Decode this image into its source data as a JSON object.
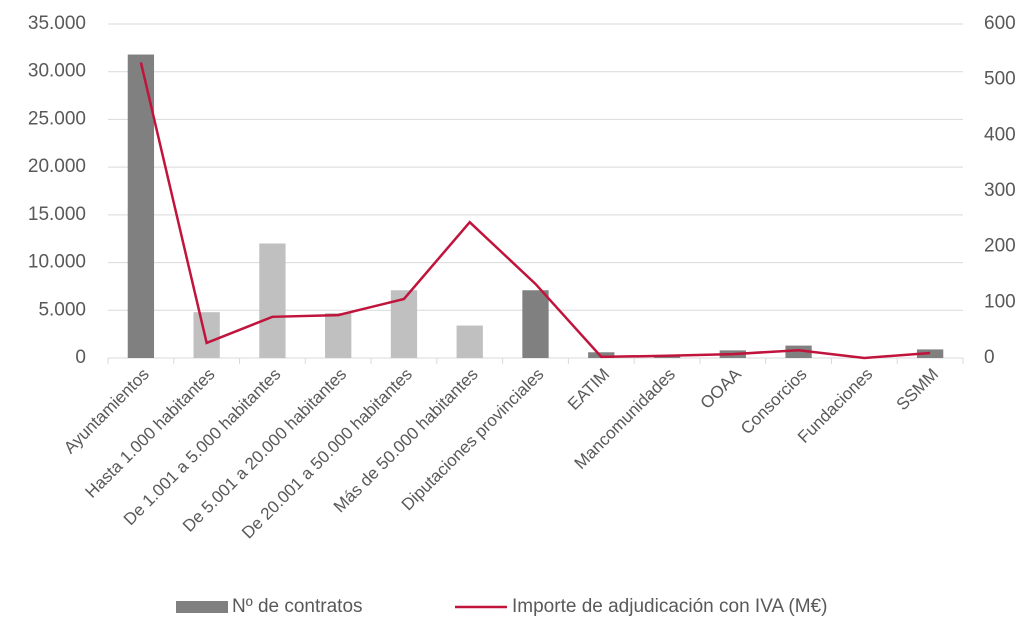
{
  "chart_data": {
    "type": "bar_line",
    "categories": [
      "Ayuntamientos",
      "Hasta 1.000 habitantes",
      "De 1.001 a 5.000 habitantes",
      "De 5.001 a 20.000 habitantes",
      "De 20.001 a 50.000 habitantes",
      "Más de 50.000 habitantes",
      "Diputaciones  provinciales",
      "EATIM",
      "Mancomunidades",
      "OOAA",
      "Consorcios",
      "Fundaciones",
      "SSMM"
    ],
    "series": [
      {
        "name": "Nº de contratos",
        "type": "bar",
        "color": "#808080",
        "colors": [
          "#808080",
          "#c0c0c0",
          "#c0c0c0",
          "#c0c0c0",
          "#c0c0c0",
          "#c0c0c0",
          "#808080",
          "#808080",
          "#808080",
          "#808080",
          "#808080",
          "#808080",
          "#808080"
        ],
        "values": [
          31800,
          4800,
          12000,
          4700,
          7100,
          3400,
          7100,
          600,
          200,
          800,
          1300,
          100,
          900
        ]
      },
      {
        "name": "Importe de adjudicación con IVA (M€)",
        "type": "line",
        "axis": "y2",
        "color": "#c0143c",
        "values": [
          531,
          27,
          74,
          77,
          106,
          244,
          133,
          2,
          4,
          7,
          14,
          0,
          9
        ]
      }
    ],
    "ylim": [
      0,
      35000
    ],
    "yticks": [
      0,
      {
        "value": 5000,
        "label": "5.000"
      },
      {
        "value": 10000,
        "label": "10.000"
      },
      {
        "value": 15000,
        "label": "15.000"
      },
      {
        "value": 20000,
        "label": "20.000"
      },
      {
        "value": 25000,
        "label": "25.000"
      },
      {
        "value": 30000,
        "label": "30.000"
      },
      {
        "value": 35000,
        "label": "35.000"
      }
    ],
    "y2lim": [
      0,
      600
    ],
    "y2ticks": [
      0,
      100,
      200,
      300,
      400,
      500,
      600
    ],
    "grid": true,
    "legend": "bottom"
  }
}
